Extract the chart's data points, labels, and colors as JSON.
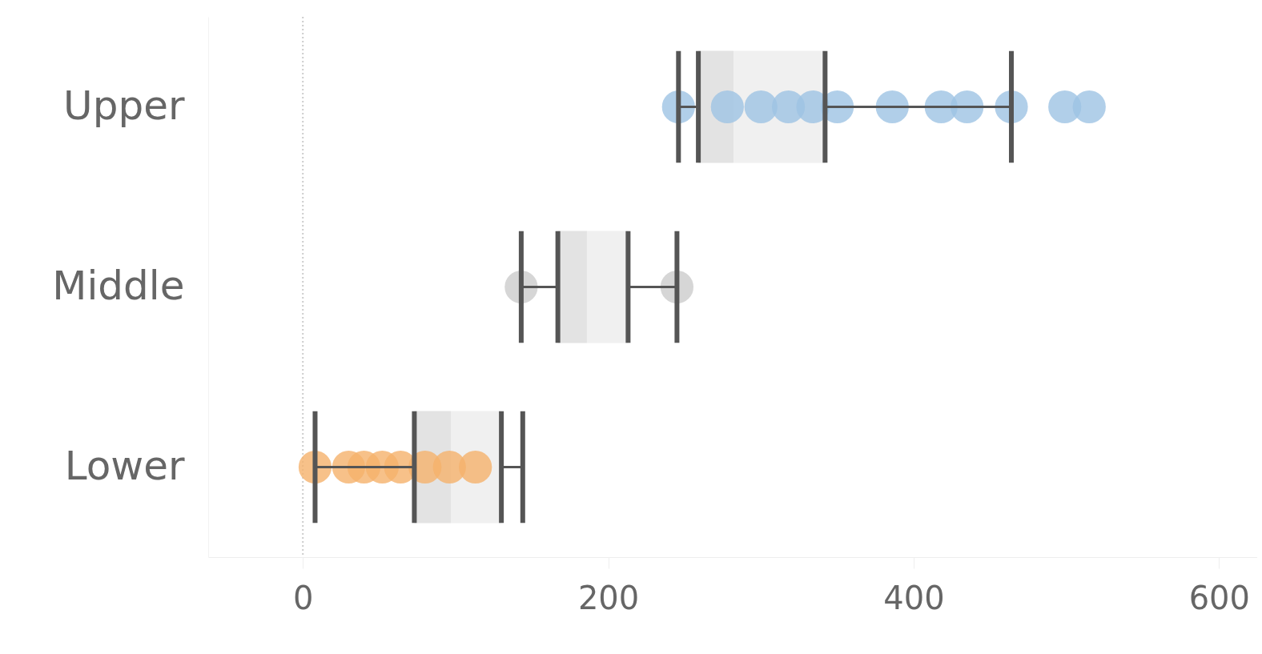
{
  "chart_data": {
    "type": "box",
    "orientation": "horizontal",
    "categories": [
      "Upper",
      "Middle",
      "Lower"
    ],
    "xlim": [
      -62,
      625
    ],
    "xticks": [
      0,
      200,
      400,
      600
    ],
    "grid": false,
    "ref_lines": [
      {
        "axis": "x",
        "value": 0,
        "line_style": "dotted",
        "color": "#cccccc"
      }
    ],
    "boxes": [
      {
        "low": 246,
        "q1": 259,
        "median": 282,
        "q3": 342,
        "high": 464
      },
      {
        "low": 143,
        "q1": 167,
        "median": 186,
        "q3": 213,
        "high": 245
      },
      {
        "low": 8,
        "q1": 73,
        "median": 97,
        "q3": 130,
        "high": 144
      }
    ],
    "color": "#e3e3e3",
    "series": [
      {
        "type": "scatter",
        "x": [
          "Upper",
          "Upper",
          "Upper",
          "Upper",
          "Upper",
          "Upper",
          "Upper",
          "Upper",
          "Upper",
          "Upper",
          "Upper",
          "Upper",
          "Middle",
          "Middle",
          "Lower",
          "Lower",
          "Lower",
          "Lower",
          "Lower",
          "Lower",
          "Lower",
          "Lower"
        ],
        "values": [
          246,
          278,
          300,
          318,
          334,
          350,
          386,
          418,
          435,
          464,
          499,
          515,
          143,
          245,
          8,
          30,
          40,
          52,
          64,
          80,
          96,
          113
        ],
        "colors": [
          "#9dc3e3",
          "#9dc3e3",
          "#9dc3e3",
          "#9dc3e3",
          "#9dc3e3",
          "#9dc3e3",
          "#9dc3e3",
          "#9dc3e3",
          "#9dc3e3",
          "#9dc3e3",
          "#9dc3e3",
          "#9dc3e3",
          "#cccccc",
          "#cccccc",
          "#f5b26b",
          "#f5b26b",
          "#f5b26b",
          "#f5b26b",
          "#f5b26b",
          "#f5b26b",
          "#f5b26b",
          "#f5b26b"
        ]
      }
    ]
  }
}
